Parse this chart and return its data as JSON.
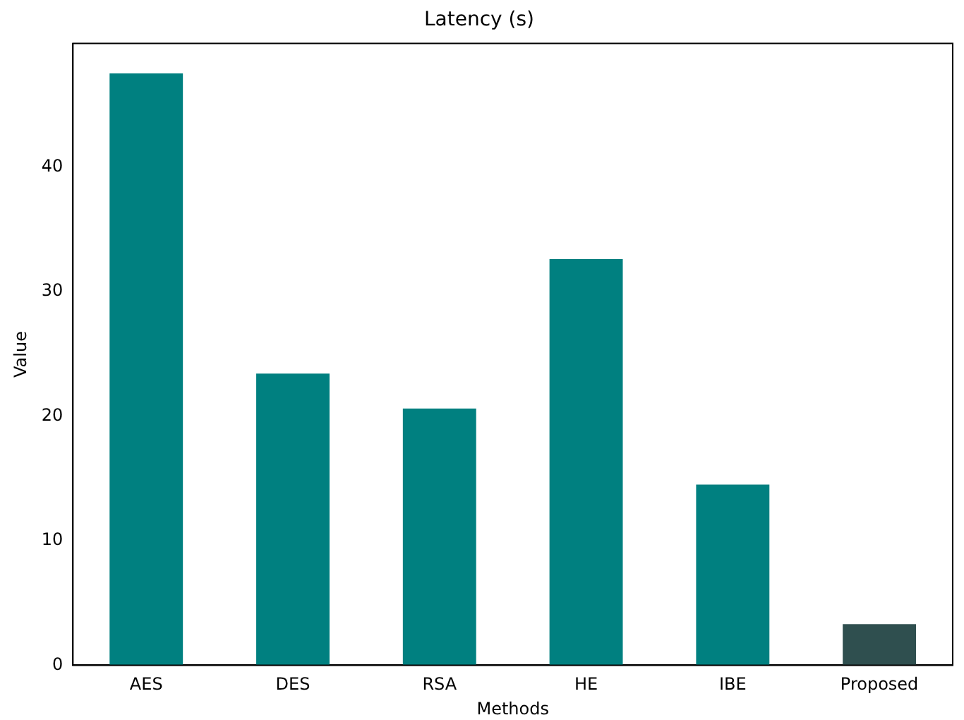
{
  "chart_data": {
    "type": "bar",
    "title": "Latency (s)",
    "xlabel": "Methods",
    "ylabel": "Value",
    "categories": [
      "AES",
      "DES",
      "RSA",
      "HE",
      "IBE",
      "Proposed"
    ],
    "values": [
      47.5,
      23.4,
      20.6,
      32.6,
      14.5,
      3.3
    ],
    "colors": [
      "#008080",
      "#008080",
      "#008080",
      "#008080",
      "#008080",
      "#2f4f4f"
    ],
    "ylim": [
      0,
      49.9
    ],
    "yticks": [
      0,
      10,
      20,
      30,
      40
    ],
    "grid": false,
    "legend": false
  }
}
